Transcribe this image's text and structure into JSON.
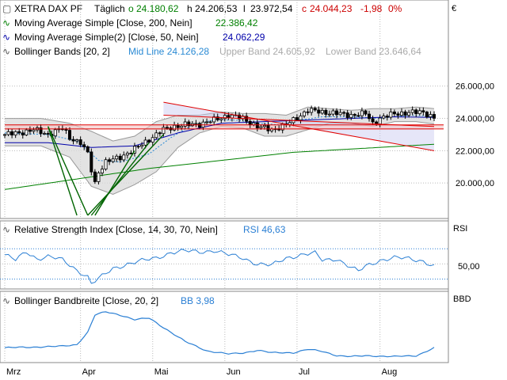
{
  "header": {
    "symbol": "XETRA DAX PF",
    "interval": "Täglich",
    "o_label": "o",
    "o_value": "24.180,62",
    "h_label": "h",
    "h_value": "24.206,53",
    "l_label": "l",
    "l_value": "23.972,54",
    "c_label": "c",
    "c_value": "24.044,23",
    "change": "-1,98",
    "change_pct": "0%",
    "currency": "€"
  },
  "legend": {
    "ma200_label": "Moving Average Simple [Close, 200, Nein]",
    "ma200_value": "22.386,42",
    "ma50_label": "Moving Average Simple(2) [Close, 50, Nein]",
    "ma50_value": "24.062,29",
    "bb_label": "Bollinger Bands [20, 2]",
    "bb_mid": "Mid Line 24.126,28",
    "bb_upper": "Upper Band 24.605,92",
    "bb_lower": "Lower Band 23.646,64"
  },
  "rsi_panel": {
    "title": "Relative Strength Index [Close, 14, 30, 70, Nein]",
    "value": "RSI 46,63",
    "axis_label": "RSI",
    "tick": "50,00"
  },
  "bbw_panel": {
    "title": "Bollinger Bandbreite [Close, 20, 2]",
    "value": "BB 3,98",
    "axis_label": "BBD"
  },
  "colors": {
    "up": "#4a4a4a",
    "down": "#000000",
    "ma200": "#008000",
    "ma50": "#0000aa",
    "bb_mid": "#2a8ad4",
    "band_fill": "#d9d9d9",
    "channel": "#e00000",
    "trend": "#006400",
    "rsi": "#2a7fd4",
    "negative": "#cc0000",
    "positive": "#008000"
  },
  "chart_data": {
    "type": "candlestick",
    "x_labels": [
      "Mrz",
      "Apr",
      "Mai",
      "Jun",
      "Jul",
      "Aug"
    ],
    "y_ticks": [
      "26.000,00",
      "24.000,00",
      "22.000,00",
      "20.000,00"
    ],
    "ylim": [
      18000,
      27800
    ],
    "close_path": [
      [
        0,
        23000
      ],
      [
        4,
        23100
      ],
      [
        8,
        23300
      ],
      [
        12,
        23000
      ],
      [
        16,
        23400
      ],
      [
        18,
        22800
      ],
      [
        21,
        22500
      ],
      [
        23,
        21800
      ],
      [
        24,
        20800
      ],
      [
        25,
        20000
      ],
      [
        26,
        20700
      ],
      [
        28,
        21300
      ],
      [
        32,
        21600
      ],
      [
        36,
        22100
      ],
      [
        40,
        22700
      ],
      [
        44,
        23300
      ],
      [
        47,
        23500
      ],
      [
        50,
        23600
      ],
      [
        54,
        23650
      ],
      [
        58,
        23900
      ],
      [
        62,
        24200
      ],
      [
        66,
        24000
      ],
      [
        70,
        23500
      ],
      [
        74,
        23300
      ],
      [
        78,
        23600
      ],
      [
        80,
        23900
      ],
      [
        82,
        24200
      ],
      [
        84,
        24500
      ],
      [
        88,
        24400
      ],
      [
        92,
        24300
      ],
      [
        96,
        24200
      ],
      [
        100,
        24300
      ],
      [
        102,
        23700
      ],
      [
        104,
        24000
      ],
      [
        108,
        24300
      ],
      [
        112,
        24350
      ],
      [
        116,
        24400
      ],
      [
        118,
        24150
      ],
      [
        119,
        24044
      ]
    ],
    "ma200_path": [
      [
        0,
        19600
      ],
      [
        40,
        20900
      ],
      [
        80,
        21900
      ],
      [
        119,
        22400
      ]
    ],
    "ma50_path": [
      [
        0,
        22500
      ],
      [
        12,
        22500
      ],
      [
        24,
        22200
      ],
      [
        36,
        22300
      ],
      [
        48,
        23100
      ],
      [
        60,
        23700
      ],
      [
        72,
        23800
      ],
      [
        84,
        23900
      ],
      [
        96,
        24000
      ],
      [
        108,
        24100
      ],
      [
        119,
        24062
      ]
    ],
    "bb_upper_path": [
      [
        0,
        24000
      ],
      [
        10,
        24000
      ],
      [
        18,
        23700
      ],
      [
        24,
        23200
      ],
      [
        30,
        22600
      ],
      [
        36,
        22900
      ],
      [
        42,
        23800
      ],
      [
        48,
        24200
      ],
      [
        54,
        24200
      ],
      [
        60,
        24400
      ],
      [
        66,
        24300
      ],
      [
        72,
        24300
      ],
      [
        78,
        24200
      ],
      [
        84,
        24700
      ],
      [
        90,
        24600
      ],
      [
        96,
        24500
      ],
      [
        102,
        24600
      ],
      [
        108,
        24600
      ],
      [
        114,
        24700
      ],
      [
        119,
        24606
      ]
    ],
    "bb_lower_path": [
      [
        0,
        22300
      ],
      [
        10,
        22300
      ],
      [
        18,
        21600
      ],
      [
        24,
        19800
      ],
      [
        30,
        19300
      ],
      [
        36,
        19900
      ],
      [
        42,
        20700
      ],
      [
        48,
        22200
      ],
      [
        54,
        23100
      ],
      [
        60,
        23500
      ],
      [
        66,
        23400
      ],
      [
        72,
        22900
      ],
      [
        78,
        22900
      ],
      [
        84,
        23300
      ],
      [
        90,
        23700
      ],
      [
        96,
        23700
      ],
      [
        102,
        23500
      ],
      [
        108,
        23800
      ],
      [
        114,
        23800
      ],
      [
        119,
        23647
      ]
    ],
    "bb_mid_path": [
      [
        0,
        23100
      ],
      [
        12,
        23000
      ],
      [
        20,
        22600
      ],
      [
        26,
        21400
      ],
      [
        32,
        21300
      ],
      [
        40,
        21800
      ],
      [
        46,
        22800
      ],
      [
        52,
        23600
      ],
      [
        58,
        23900
      ],
      [
        64,
        23900
      ],
      [
        70,
        23700
      ],
      [
        76,
        23600
      ],
      [
        82,
        23900
      ],
      [
        88,
        24100
      ],
      [
        96,
        24100
      ],
      [
        104,
        24000
      ],
      [
        112,
        24200
      ],
      [
        119,
        24126
      ]
    ],
    "channel_lines": [
      [
        [
          44,
          24200
        ],
        [
          119,
          23500
        ]
      ],
      [
        [
          44,
          25000
        ],
        [
          119,
          22000
        ]
      ]
    ],
    "support_lines": [
      [
        [
          0,
          23600
        ],
        [
          119,
          23600
        ]
      ],
      [
        [
          0,
          23350
        ],
        [
          119,
          23350
        ]
      ]
    ],
    "fan_lines": [
      [
        [
          12,
          23500
        ],
        [
          20,
          18000
        ]
      ],
      [
        [
          12,
          23500
        ],
        [
          23,
          18000
        ]
      ],
      [
        [
          23,
          18000
        ],
        [
          44,
          23000
        ]
      ],
      [
        [
          24,
          18000
        ],
        [
          40,
          22500
        ]
      ],
      [
        [
          25,
          18000
        ],
        [
          36,
          22000
        ]
      ]
    ],
    "rsi": {
      "ylim": [
        20,
        85
      ],
      "levels": [
        30,
        50,
        70
      ],
      "path": [
        [
          0,
          62
        ],
        [
          3,
          55
        ],
        [
          6,
          66
        ],
        [
          9,
          57
        ],
        [
          12,
          60
        ],
        [
          16,
          55
        ],
        [
          20,
          42
        ],
        [
          23,
          33
        ],
        [
          24,
          24
        ],
        [
          26,
          30
        ],
        [
          30,
          44
        ],
        [
          34,
          50
        ],
        [
          38,
          54
        ],
        [
          42,
          58
        ],
        [
          46,
          65
        ],
        [
          50,
          67
        ],
        [
          54,
          66
        ],
        [
          58,
          68
        ],
        [
          62,
          62
        ],
        [
          66,
          58
        ],
        [
          70,
          50
        ],
        [
          74,
          48
        ],
        [
          78,
          58
        ],
        [
          82,
          62
        ],
        [
          86,
          64
        ],
        [
          88,
          55
        ],
        [
          92,
          57
        ],
        [
          96,
          45
        ],
        [
          98,
          40
        ],
        [
          100,
          47
        ],
        [
          104,
          55
        ],
        [
          108,
          58
        ],
        [
          112,
          57
        ],
        [
          116,
          54
        ],
        [
          119,
          46.63
        ]
      ]
    },
    "bbw": {
      "ylim": [
        0,
        17
      ],
      "path": [
        [
          0,
          4
        ],
        [
          8,
          4.2
        ],
        [
          16,
          4.5
        ],
        [
          20,
          5
        ],
        [
          23,
          9
        ],
        [
          25,
          14.5
        ],
        [
          28,
          15.5
        ],
        [
          32,
          14.5
        ],
        [
          36,
          13
        ],
        [
          40,
          13.5
        ],
        [
          42,
          12
        ],
        [
          46,
          9
        ],
        [
          50,
          6
        ],
        [
          56,
          3
        ],
        [
          62,
          2
        ],
        [
          66,
          2.3
        ],
        [
          70,
          3.2
        ],
        [
          74,
          2.4
        ],
        [
          80,
          2.4
        ],
        [
          84,
          3.5
        ],
        [
          88,
          2.8
        ],
        [
          92,
          1.5
        ],
        [
          96,
          1.2
        ],
        [
          100,
          1.4
        ],
        [
          108,
          1.2
        ],
        [
          114,
          1.4
        ],
        [
          119,
          3.98
        ]
      ]
    }
  }
}
